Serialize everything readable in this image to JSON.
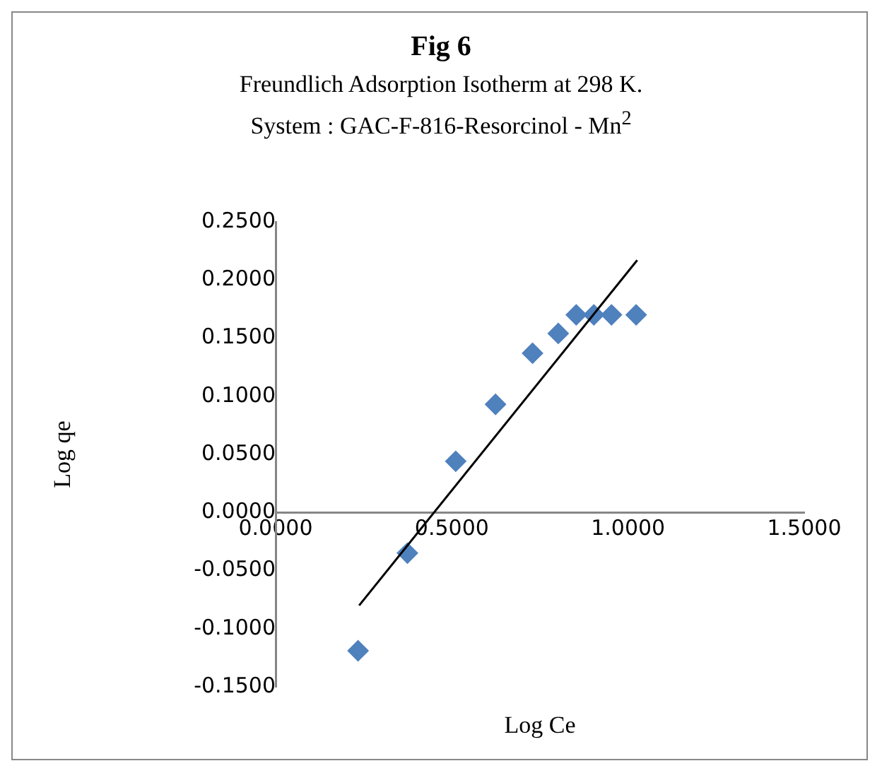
{
  "chart_data": {
    "type": "scatter",
    "title": "Fig  6",
    "subtitle": "Freundlich Adsorption Isotherm at 298 K.\nSystem : GAC-F-816-Resorcinol - Mn$^{2}$",
    "xlabel": "Log Ce",
    "ylabel": "Log qe",
    "xlim": [
      0,
      1.5
    ],
    "xticks": [
      {
        "value": 0,
        "label": "0.0000"
      },
      {
        "value": 0.5,
        "label": "0.5000"
      },
      {
        "value": 1,
        "label": "1.0000"
      },
      {
        "value": 1.5,
        "label": "1.5000"
      }
    ],
    "ylim": [
      -0.15,
      0.25
    ],
    "yticks": [
      {
        "value": -0.15,
        "label": "-0.1500"
      },
      {
        "value": -0.1,
        "label": "-0.1000"
      },
      {
        "value": -0.05,
        "label": "-0.0500"
      },
      {
        "value": 0,
        "label": "0.0000"
      },
      {
        "value": 0.05,
        "label": "0.0500"
      },
      {
        "value": 0.1,
        "label": "0.1000"
      },
      {
        "value": 0.15,
        "label": "0.1500"
      },
      {
        "value": 0.2,
        "label": "0.2000"
      },
      {
        "value": 0.25,
        "label": "0.2500"
      }
    ],
    "grid": false,
    "legend": false,
    "series": [
      {
        "type": "scatter",
        "color": "#4f81bd",
        "marker": "diamond",
        "x": [
          0.234,
          0.374,
          0.511,
          0.624,
          0.729,
          0.802,
          0.853,
          0.903,
          0.953,
          1.023
        ],
        "values": [
          -0.119,
          -0.035,
          0.044,
          0.093,
          0.137,
          0.154,
          0.17,
          0.17,
          0.17,
          0.17
        ]
      },
      {
        "type": "line",
        "color": "#000000",
        "marker": "none",
        "line_style": "solid",
        "x": [
          0.237,
          1.026
        ],
        "values": [
          -0.08,
          0.217
        ]
      }
    ]
  }
}
